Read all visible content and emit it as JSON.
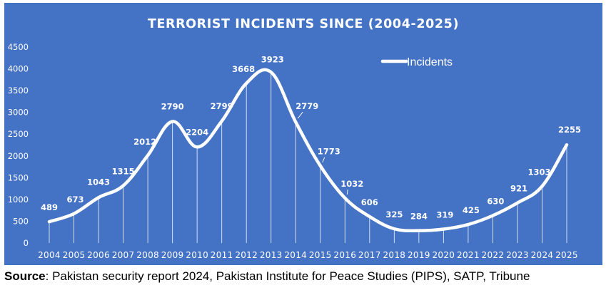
{
  "chart_data": {
    "type": "line",
    "title": "TERRORIST INCIDENTS SINCE (2004-2025)",
    "xlabel": "",
    "ylabel": "",
    "categories": [
      "2004",
      "2005",
      "2006",
      "2007",
      "2008",
      "2009",
      "2010",
      "2011",
      "2012",
      "2013",
      "2014",
      "2015",
      "2016",
      "2017",
      "2018",
      "2019",
      "2020",
      "2021",
      "2022",
      "2023",
      "2024",
      "2025"
    ],
    "series": [
      {
        "name": "Incidents",
        "values": [
          489,
          673,
          1043,
          1315,
          2012,
          2790,
          2204,
          2799,
          3668,
          3923,
          2779,
          1773,
          1032,
          606,
          325,
          284,
          319,
          425,
          630,
          921,
          1303,
          2255
        ]
      }
    ],
    "ylim": [
      0,
      4500
    ],
    "yticks": [
      0,
      500,
      1000,
      1500,
      2000,
      2500,
      3000,
      3500,
      4000,
      4500
    ],
    "grid": false,
    "drop_lines": true,
    "legend": "top-right",
    "colors": {
      "background": "#4472c4",
      "line": "#ffffff",
      "text": "#ffffff"
    }
  },
  "caption": {
    "source_label": "Source",
    "source_text": ": Pakistan security report 2024, Pakistan Institute for Peace Studies (PIPS), SATP, Tribune"
  }
}
